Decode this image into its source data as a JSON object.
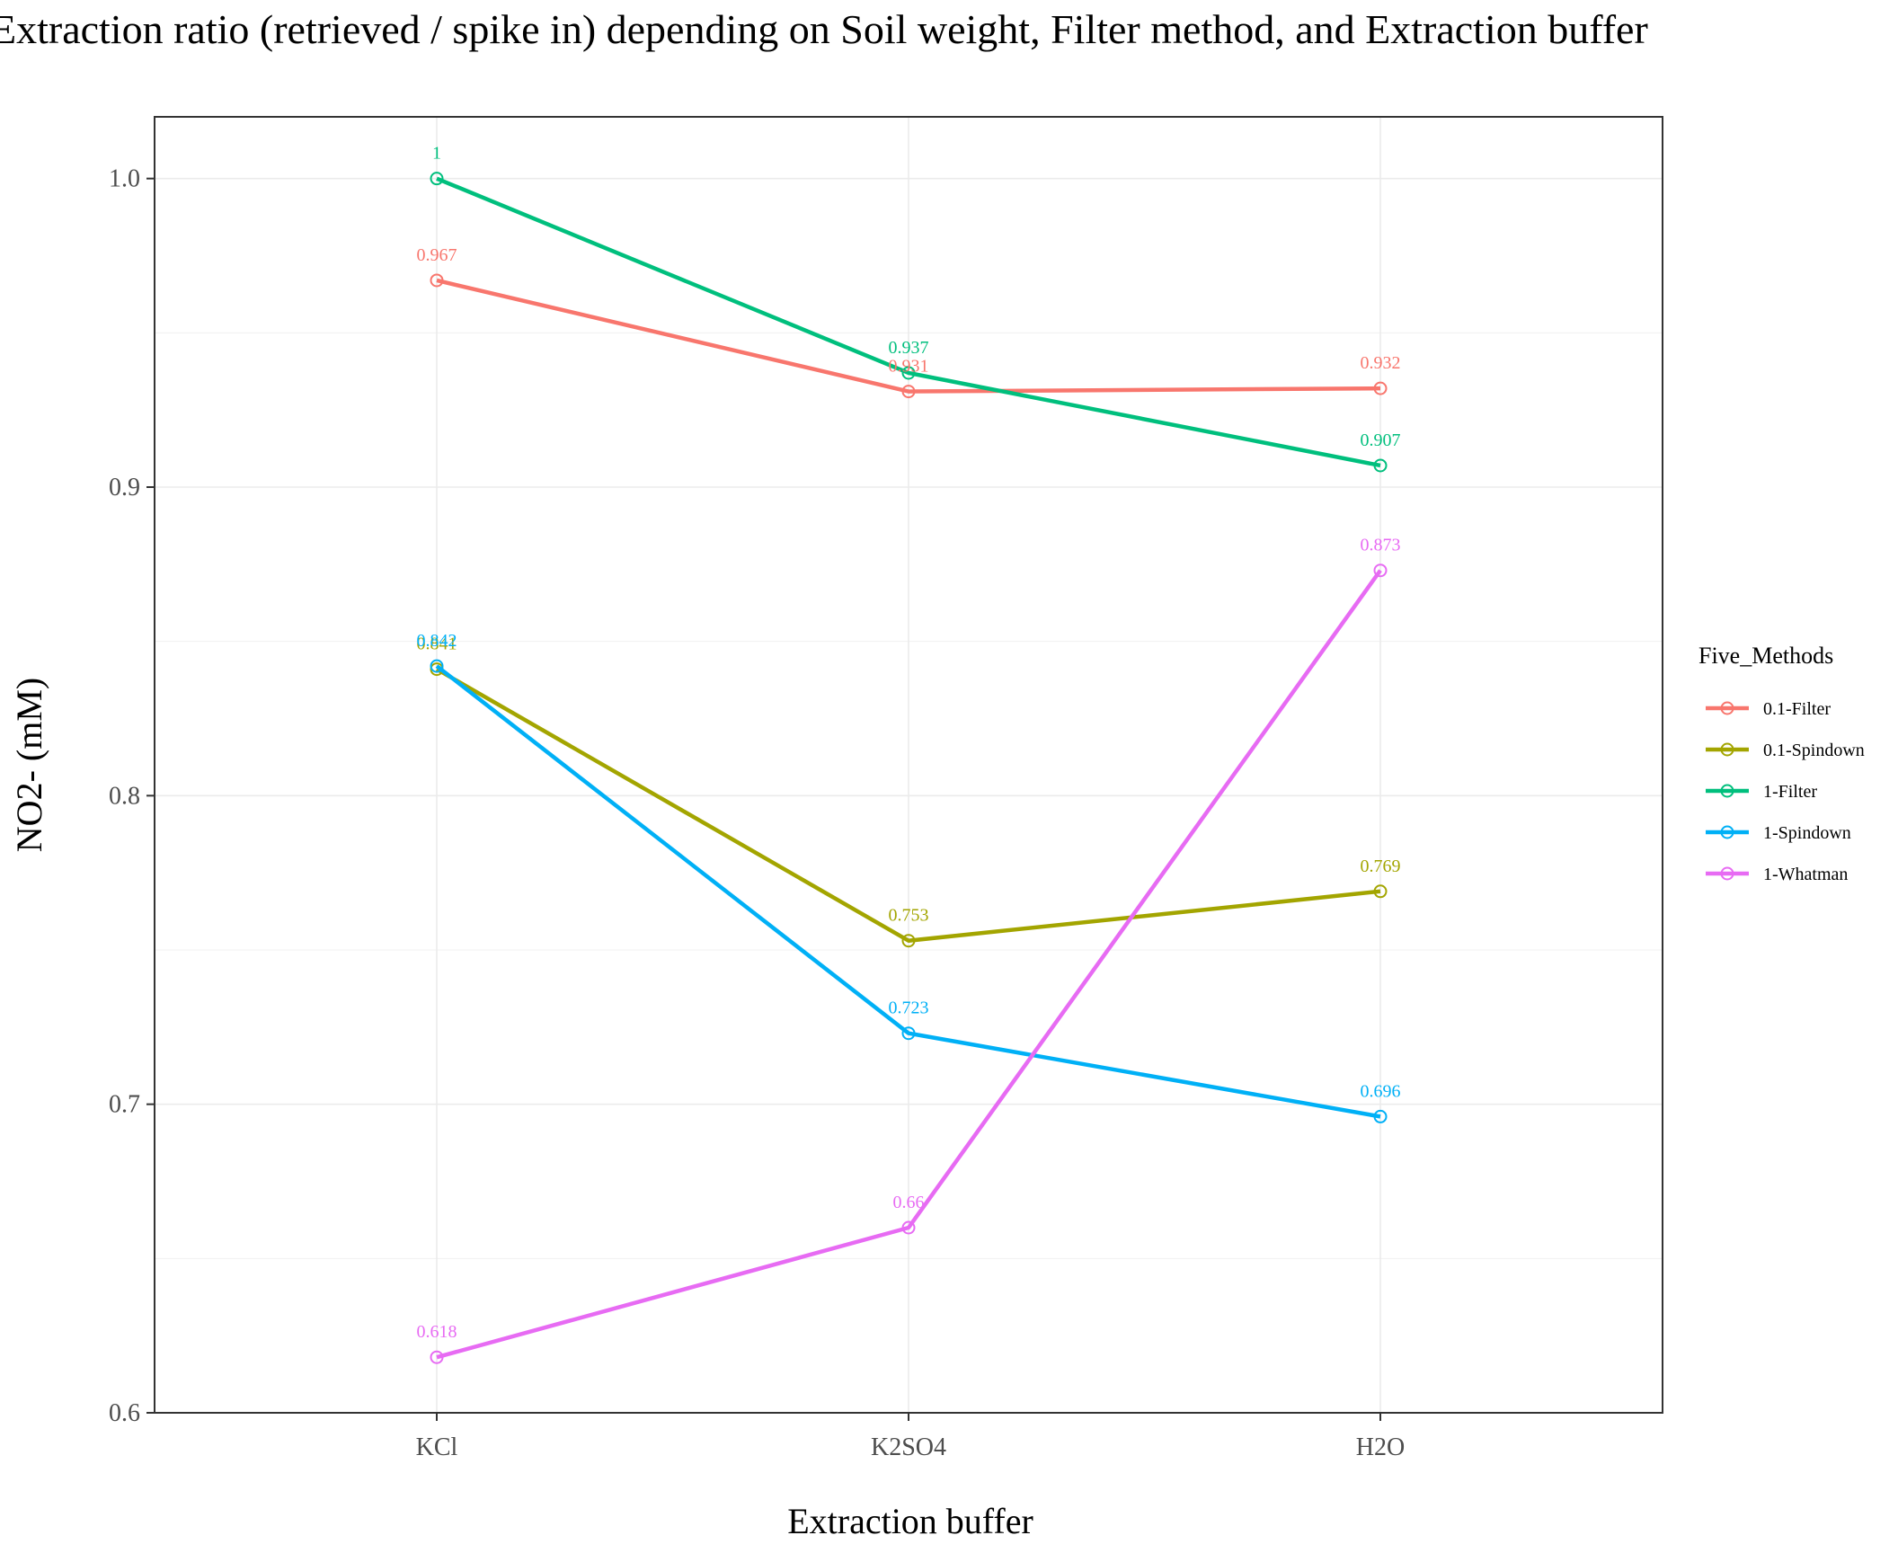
{
  "chart_data": {
    "type": "line",
    "title": "Extraction ratio (retrieved / spike in) depending on Soil weight, Filter method, and Extraction buffer",
    "xlabel": "Extraction buffer",
    "ylabel": "NO2- (mM)",
    "categories": [
      "KCl",
      "K2SO4",
      "H2O"
    ],
    "ylim": [
      0.6,
      1.02
    ],
    "y_ticks": [
      "0.6",
      "0.7",
      "0.8",
      "0.9",
      "1.0"
    ],
    "grid": true,
    "legend": {
      "title": "Five_Methods",
      "position": "right"
    },
    "series": [
      {
        "name": "0.1-Filter",
        "color": "#F8766D",
        "values": [
          0.967,
          0.931,
          0.932
        ],
        "labels": [
          "0.967",
          "0.931",
          "0.932"
        ]
      },
      {
        "name": "0.1-Spindown",
        "color": "#A3A500",
        "values": [
          0.841,
          0.753,
          0.769
        ],
        "labels": [
          "0.841",
          "0.753",
          "0.769"
        ]
      },
      {
        "name": "1-Filter",
        "color": "#00BF7D",
        "values": [
          1.0,
          0.937,
          0.907
        ],
        "labels": [
          "1",
          "0.937",
          "0.907"
        ]
      },
      {
        "name": "1-Spindown",
        "color": "#00B0F6",
        "values": [
          0.842,
          0.723,
          0.696
        ],
        "labels": [
          "0.842",
          "0.723",
          "0.696"
        ]
      },
      {
        "name": "1-Whatman",
        "color": "#E76BF3",
        "values": [
          0.618,
          0.66,
          0.873
        ],
        "labels": [
          "0.618",
          "0.66",
          "0.873"
        ]
      }
    ]
  }
}
